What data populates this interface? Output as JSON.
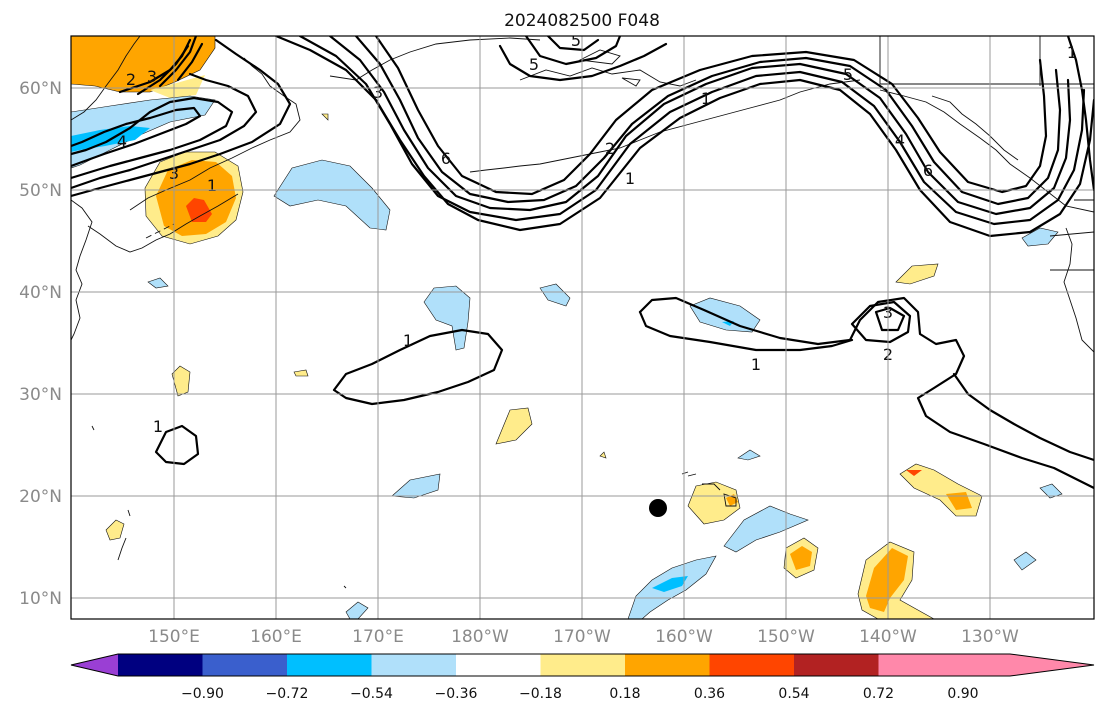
{
  "title": "2024082500 F048",
  "lat_labels": [
    "60°N",
    "50°N",
    "40°N",
    "30°N",
    "20°N",
    "10°N"
  ],
  "lon_labels": [
    "150°E",
    "160°E",
    "170°E",
    "180°W",
    "170°W",
    "160°W",
    "150°W",
    "140°W",
    "130°W"
  ],
  "colorbar": {
    "tick_labels": [
      "−0.90",
      "−0.72",
      "−0.54",
      "−0.36",
      "−0.18",
      "0.18",
      "0.36",
      "0.54",
      "0.72",
      "0.90"
    ],
    "colors": [
      "#9a3fd4",
      "#000080",
      "#3a5fcd",
      "#00bfff",
      "#b0e0fa",
      "#ffffff",
      "#ffec8b",
      "#ffa500",
      "#ff4500",
      "#b22222",
      "#ff88aa"
    ]
  },
  "contour_labels": [
    "4",
    "3",
    "1",
    "2",
    "3",
    "5",
    "5",
    "3",
    "6",
    "1",
    "2",
    "1",
    "1",
    "3",
    "2",
    "1",
    "5",
    "4",
    "6",
    "1",
    "1"
  ],
  "colors": {
    "pos_light": "#ffec8b",
    "pos_mid": "#ffa500",
    "pos_strong": "#ff4500",
    "neg_light": "#b0e0fa",
    "neg_mid": "#00bfff",
    "contour": "#000000",
    "storm_marker": "#000000"
  }
}
